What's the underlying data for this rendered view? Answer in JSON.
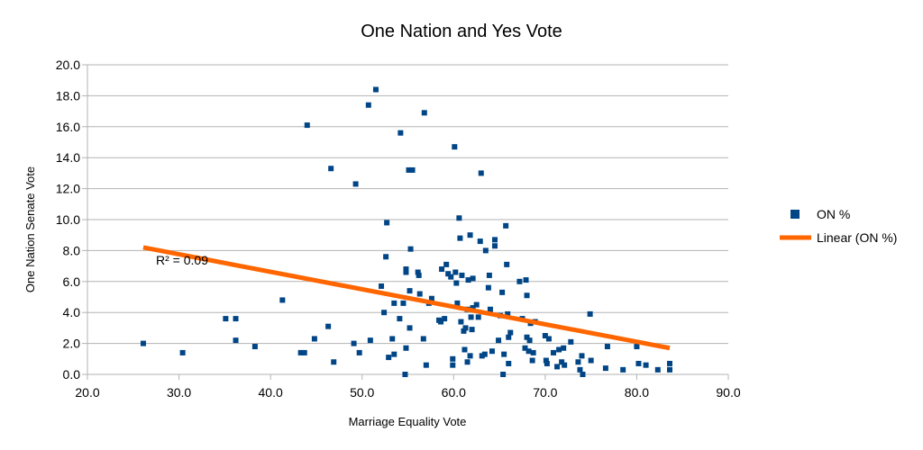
{
  "chart_data": {
    "type": "scatter",
    "title": "One Nation and Yes Vote",
    "xlabel": "Marriage Equality Vote",
    "ylabel": "One Nation Senate Vote",
    "xlim": [
      20,
      90
    ],
    "ylim": [
      0,
      20
    ],
    "x_ticks": [
      "20.0",
      "30.0",
      "40.0",
      "50.0",
      "60.0",
      "70.0",
      "80.0",
      "90.0"
    ],
    "y_ticks": [
      "0.0",
      "2.0",
      "4.0",
      "6.0",
      "8.0",
      "10.0",
      "12.0",
      "14.0",
      "16.0",
      "18.0",
      "20.0"
    ],
    "grid": "horizontal",
    "legend_position": "right",
    "colors": {
      "points": "#004586",
      "trend": "#ff6600",
      "grid": "#b3b3b3"
    },
    "series": [
      {
        "name": "ON %",
        "points": [
          [
            26.1,
            2.0
          ],
          [
            30.4,
            1.4
          ],
          [
            35.1,
            3.6
          ],
          [
            36.2,
            3.6
          ],
          [
            36.2,
            2.2
          ],
          [
            38.3,
            1.8
          ],
          [
            41.3,
            4.8
          ],
          [
            43.3,
            1.4
          ],
          [
            43.7,
            1.4
          ],
          [
            44.0,
            16.1
          ],
          [
            44.8,
            2.3
          ],
          [
            46.3,
            3.1
          ],
          [
            46.6,
            13.3
          ],
          [
            46.9,
            0.8
          ],
          [
            49.1,
            2.0
          ],
          [
            49.3,
            12.3
          ],
          [
            49.7,
            1.4
          ],
          [
            50.7,
            17.4
          ],
          [
            50.9,
            2.2
          ],
          [
            51.5,
            18.4
          ],
          [
            52.1,
            5.7
          ],
          [
            52.4,
            4.0
          ],
          [
            52.6,
            7.6
          ],
          [
            52.7,
            9.8
          ],
          [
            52.9,
            1.1
          ],
          [
            53.3,
            2.3
          ],
          [
            53.5,
            4.6
          ],
          [
            53.5,
            1.3
          ],
          [
            54.1,
            3.6
          ],
          [
            54.2,
            15.6
          ],
          [
            54.5,
            4.6
          ],
          [
            54.7,
            0.0
          ],
          [
            54.8,
            6.8
          ],
          [
            54.8,
            6.6
          ],
          [
            54.8,
            1.7
          ],
          [
            55.1,
            13.2
          ],
          [
            55.3,
            8.1
          ],
          [
            55.5,
            13.2
          ],
          [
            55.2,
            5.4
          ],
          [
            55.2,
            3.0
          ],
          [
            56.1,
            6.6
          ],
          [
            56.2,
            6.4
          ],
          [
            56.3,
            5.2
          ],
          [
            56.7,
            2.3
          ],
          [
            56.8,
            16.9
          ],
          [
            57.0,
            0.6
          ],
          [
            57.3,
            4.6
          ],
          [
            57.6,
            4.9
          ],
          [
            58.4,
            3.5
          ],
          [
            58.6,
            3.4
          ],
          [
            58.7,
            6.8
          ],
          [
            59.0,
            3.6
          ],
          [
            59.2,
            7.1
          ],
          [
            59.4,
            6.5
          ],
          [
            59.7,
            6.3
          ],
          [
            59.9,
            1.0
          ],
          [
            59.9,
            0.6
          ],
          [
            60.1,
            14.7
          ],
          [
            60.2,
            6.6
          ],
          [
            60.3,
            5.9
          ],
          [
            60.4,
            4.6
          ],
          [
            60.6,
            10.1
          ],
          [
            60.7,
            8.8
          ],
          [
            60.9,
            6.4
          ],
          [
            60.8,
            3.4
          ],
          [
            61.1,
            2.8
          ],
          [
            61.2,
            1.6
          ],
          [
            61.3,
            3.0
          ],
          [
            61.5,
            4.2
          ],
          [
            61.5,
            0.8
          ],
          [
            61.6,
            6.1
          ],
          [
            61.8,
            9.0
          ],
          [
            61.8,
            1.2
          ],
          [
            61.9,
            3.7
          ],
          [
            62.0,
            2.9
          ],
          [
            62.1,
            6.2
          ],
          [
            62.1,
            4.3
          ],
          [
            62.5,
            4.5
          ],
          [
            62.7,
            3.7
          ],
          [
            62.9,
            8.6
          ],
          [
            63.0,
            13.0
          ],
          [
            63.1,
            1.2
          ],
          [
            63.4,
            1.3
          ],
          [
            63.5,
            8.0
          ],
          [
            63.8,
            5.6
          ],
          [
            64.0,
            4.2
          ],
          [
            63.9,
            6.4
          ],
          [
            64.2,
            1.5
          ],
          [
            64.5,
            8.3
          ],
          [
            64.5,
            8.7
          ],
          [
            64.9,
            2.2
          ],
          [
            65.1,
            3.8
          ],
          [
            65.3,
            5.3
          ],
          [
            65.4,
            0.0
          ],
          [
            65.5,
            1.3
          ],
          [
            65.7,
            9.6
          ],
          [
            65.8,
            7.1
          ],
          [
            65.9,
            3.9
          ],
          [
            66.0,
            0.7
          ],
          [
            66.0,
            2.4
          ],
          [
            66.2,
            2.7
          ],
          [
            67.2,
            6.0
          ],
          [
            67.5,
            3.6
          ],
          [
            67.8,
            1.7
          ],
          [
            67.9,
            6.1
          ],
          [
            68.0,
            5.1
          ],
          [
            68.0,
            2.4
          ],
          [
            68.2,
            1.5
          ],
          [
            68.3,
            2.2
          ],
          [
            68.4,
            3.3
          ],
          [
            68.6,
            0.9
          ],
          [
            68.7,
            1.4
          ],
          [
            68.9,
            3.4
          ],
          [
            70.0,
            2.5
          ],
          [
            70.1,
            0.9
          ],
          [
            70.2,
            0.7
          ],
          [
            70.4,
            2.3
          ],
          [
            70.9,
            1.4
          ],
          [
            71.3,
            0.5
          ],
          [
            71.5,
            1.6
          ],
          [
            71.8,
            0.8
          ],
          [
            72.0,
            1.7
          ],
          [
            72.1,
            0.6
          ],
          [
            72.8,
            2.1
          ],
          [
            73.6,
            0.8
          ],
          [
            73.8,
            0.3
          ],
          [
            74.0,
            1.2
          ],
          [
            74.1,
            0.0
          ],
          [
            74.9,
            3.9
          ],
          [
            75.0,
            0.9
          ],
          [
            76.6,
            0.4
          ],
          [
            76.8,
            1.8
          ],
          [
            78.5,
            0.3
          ],
          [
            80.0,
            1.8
          ],
          [
            80.2,
            0.7
          ],
          [
            81.0,
            0.6
          ],
          [
            82.3,
            0.3
          ],
          [
            83.6,
            0.7
          ],
          [
            83.6,
            0.3
          ]
        ]
      }
    ],
    "trendline": {
      "name": "Linear (ON %)",
      "x_range": [
        26.1,
        83.6
      ],
      "y_range": [
        8.2,
        1.7
      ],
      "label": "R² = 0.09"
    }
  }
}
